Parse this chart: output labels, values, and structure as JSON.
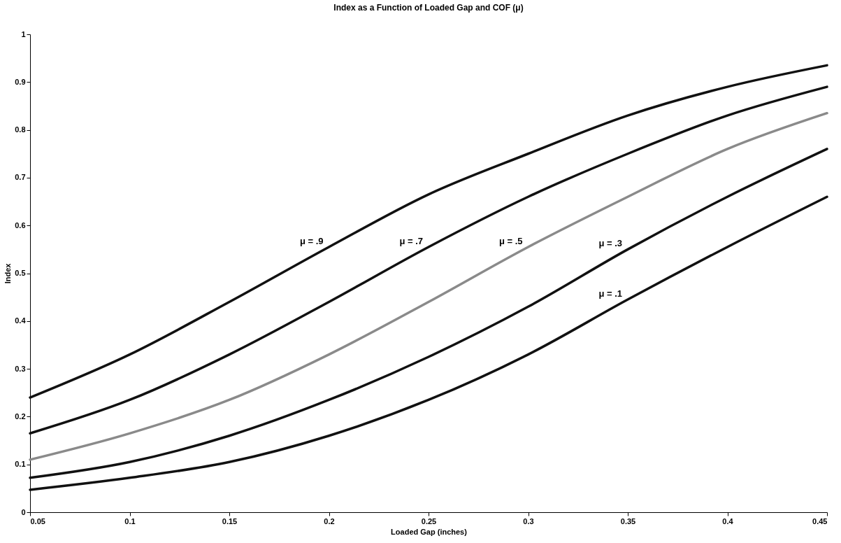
{
  "chart_data": {
    "type": "line",
    "title": "Index as a Function of Loaded Gap and COF (μ)",
    "xlabel": "Loaded Gap (inches)",
    "ylabel": "Index",
    "x": [
      0.05,
      0.1,
      0.15,
      0.2,
      0.25,
      0.3,
      0.35,
      0.4,
      0.45
    ],
    "series": [
      {
        "name": "μ = .9",
        "color": "#111111",
        "values": [
          0.24,
          0.33,
          0.44,
          0.555,
          0.665,
          0.75,
          0.83,
          0.89,
          0.935
        ]
      },
      {
        "name": "μ = .7",
        "color": "#111111",
        "values": [
          0.165,
          0.235,
          0.33,
          0.44,
          0.555,
          0.66,
          0.75,
          0.83,
          0.89
        ]
      },
      {
        "name": "μ = .5",
        "color": "#8a8a8a",
        "values": [
          0.11,
          0.165,
          0.235,
          0.33,
          0.44,
          0.555,
          0.66,
          0.76,
          0.835
        ]
      },
      {
        "name": "μ = .3",
        "color": "#111111",
        "values": [
          0.072,
          0.105,
          0.16,
          0.235,
          0.325,
          0.43,
          0.55,
          0.66,
          0.76
        ]
      },
      {
        "name": "μ = .1",
        "color": "#111111",
        "values": [
          0.047,
          0.072,
          0.105,
          0.16,
          0.235,
          0.33,
          0.445,
          0.555,
          0.66
        ]
      }
    ],
    "xlim": [
      0.05,
      0.45
    ],
    "xticks": [
      0.05,
      0.1,
      0.15,
      0.2,
      0.25,
      0.3,
      0.35,
      0.4,
      0.45
    ],
    "ylim": [
      0,
      1
    ],
    "yticks": [
      0,
      0.1,
      0.2,
      0.3,
      0.4,
      0.5,
      0.6,
      0.7,
      0.8,
      0.9,
      1
    ],
    "grid": false,
    "legend": false,
    "marker": "none",
    "line_style": "solid"
  }
}
